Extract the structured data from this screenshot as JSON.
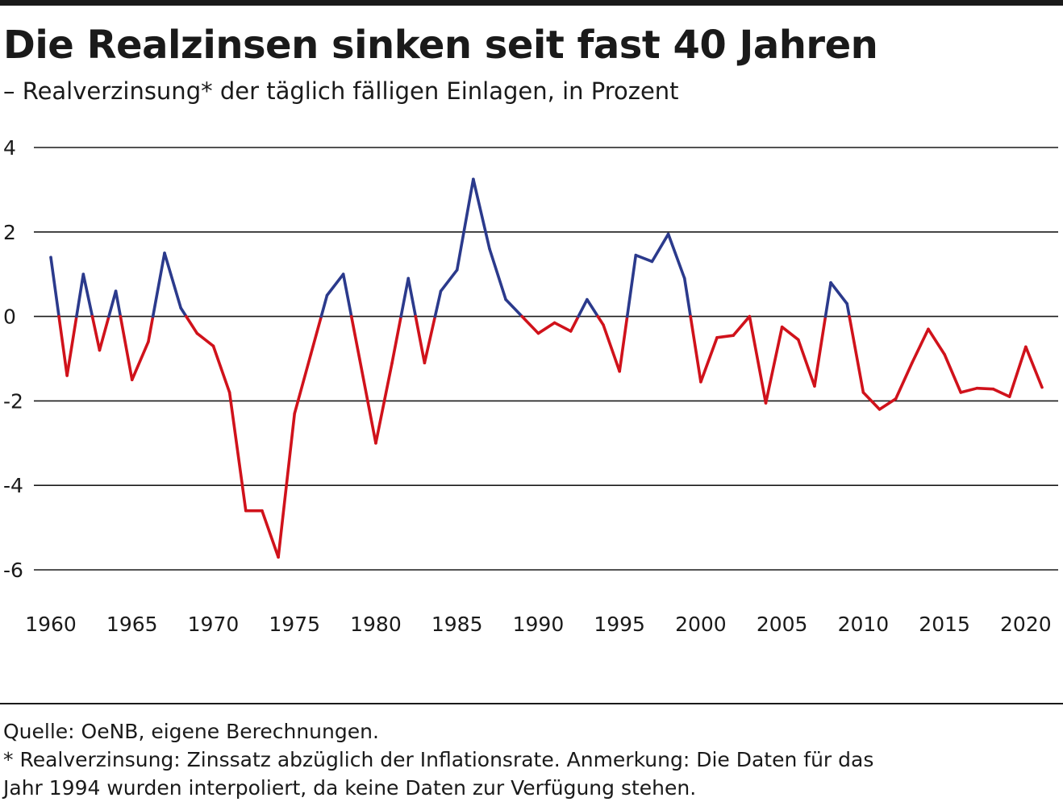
{
  "header": {
    "title": "Die Realzinsen sinken seit fast 40 Jahren",
    "subtitle": "– Realverzinsung* der täglich fälligen Einlagen, in Prozent"
  },
  "footer": {
    "source": "Quelle: OeNB, eigene Berechnungen.",
    "note_line1": "* Realverzinsung: Zinssatz abzüglich der Inflationsrate. Anmerkung: Die Daten für das",
    "note_line2": "Jahr 1994 wurden interpoliert, da keine Daten zur Verfügung stehen."
  },
  "chart_data": {
    "type": "line",
    "title": "Die Realzinsen sinken seit fast 40 Jahren",
    "subtitle": "– Realverzinsung* der täglich fälligen Einlagen, in Prozent",
    "xlabel": "",
    "ylabel": "",
    "x": [
      1960,
      1961,
      1962,
      1963,
      1964,
      1965,
      1966,
      1967,
      1968,
      1969,
      1970,
      1971,
      1972,
      1973,
      1974,
      1975,
      1976,
      1977,
      1978,
      1979,
      1980,
      1981,
      1982,
      1983,
      1984,
      1985,
      1986,
      1987,
      1988,
      1989,
      1990,
      1991,
      1992,
      1993,
      1994,
      1995,
      1996,
      1997,
      1998,
      1999,
      2000,
      2001,
      2002,
      2003,
      2004,
      2005,
      2006,
      2007,
      2008,
      2009,
      2010,
      2011,
      2012,
      2013,
      2014,
      2015,
      2016,
      2017,
      2018,
      2019,
      2020,
      2021
    ],
    "series": [
      {
        "values": [
          1.4,
          -1.4,
          1.0,
          -0.8,
          0.6,
          -1.5,
          -0.6,
          1.5,
          0.2,
          -0.4,
          -0.7,
          -1.8,
          -4.6,
          -4.6,
          -5.7,
          -2.3,
          -0.9,
          0.5,
          1.0,
          -1.0,
          -3.0,
          -1.1,
          0.9,
          -1.1,
          0.6,
          1.1,
          3.25,
          1.6,
          0.4,
          0.0,
          -0.4,
          -0.15,
          -0.35,
          0.4,
          -0.2,
          -1.3,
          1.45,
          1.3,
          1.95,
          0.9,
          -1.55,
          -0.5,
          -0.45,
          0.0,
          -2.05,
          -0.25,
          -0.55,
          -1.65,
          0.8,
          0.3,
          -1.8,
          -2.2,
          -1.95,
          -1.1,
          -0.3,
          -0.9,
          -1.8,
          -1.7,
          -1.72,
          -1.9,
          -0.72,
          -1.68
        ]
      }
    ],
    "colors": {
      "positive": "#2b3a8c",
      "negative": "#d0121b"
    },
    "xticks": [
      1960,
      1965,
      1970,
      1975,
      1980,
      1985,
      1990,
      1995,
      2000,
      2005,
      2010,
      2015,
      2020
    ],
    "yticks": [
      4,
      2,
      0,
      -2,
      -4,
      -6
    ],
    "ylim": [
      -6,
      4
    ],
    "xlim": [
      1960,
      2021
    ],
    "grid": "horizontal"
  }
}
